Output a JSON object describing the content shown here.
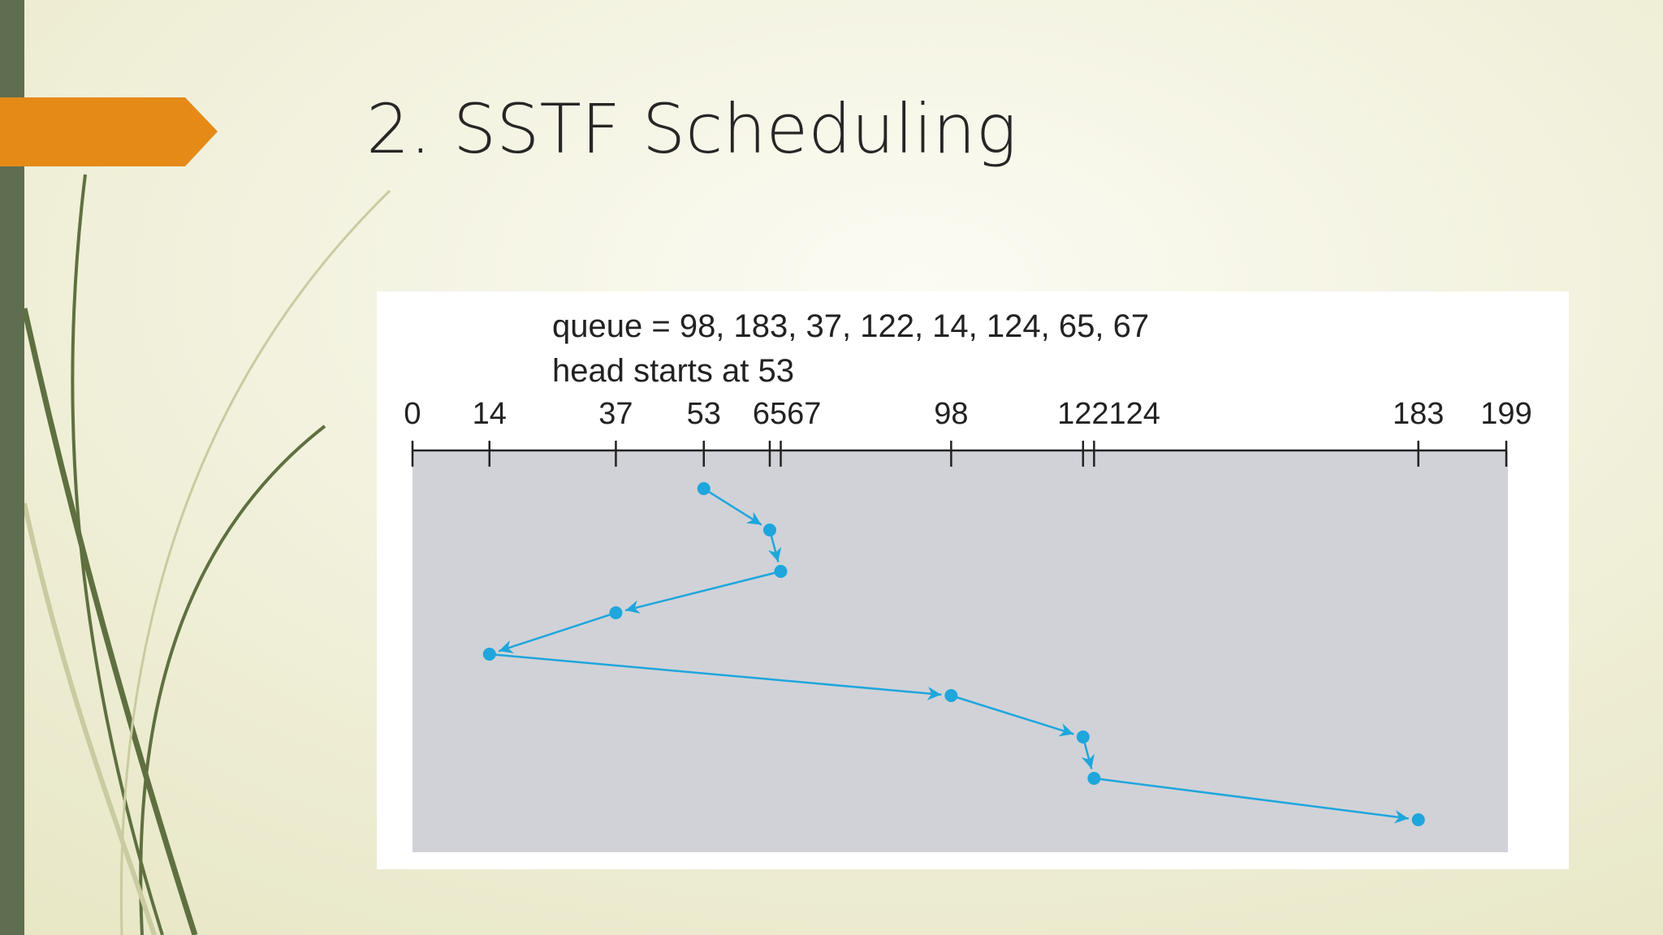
{
  "slide_title": "2. SSTF Scheduling",
  "chart_data": {
    "type": "line",
    "annotations": [
      "queue = 98, 183, 37, 122, 14, 124, 65, 67",
      "head starts at 53"
    ],
    "values": [
      53,
      65,
      67,
      37,
      14,
      98,
      122,
      124,
      183
    ],
    "color": "#1ea6dd",
    "xlim": [
      0,
      199
    ],
    "xticks": [
      0,
      14,
      37,
      53,
      65,
      67,
      98,
      122,
      124,
      183,
      199
    ]
  }
}
